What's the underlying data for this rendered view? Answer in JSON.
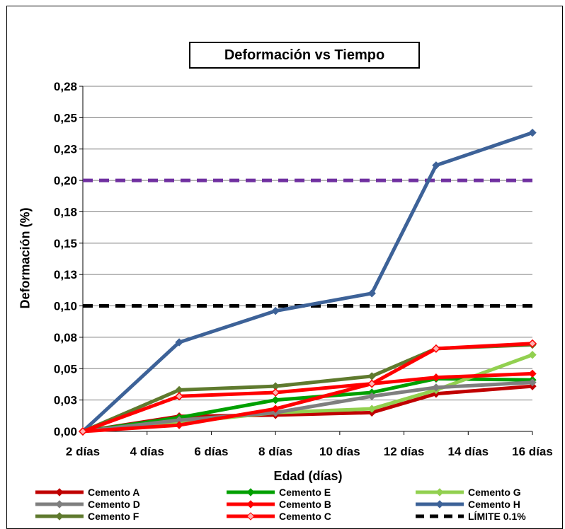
{
  "chart_data": {
    "type": "line",
    "title": "Deformación vs Tiempo",
    "xlabel": "Edad (días)",
    "ylabel": "Deformación (%)",
    "x_ticks": [
      "2 días",
      "4 días",
      "6 días",
      "8 días",
      "10 días",
      "12 días",
      "14 días",
      "16 días"
    ],
    "x_range": [
      2,
      16
    ],
    "y_range": [
      0,
      0.275
    ],
    "y_ticks": [
      {
        "value": 0.0,
        "label": "0,00"
      },
      {
        "value": 0.025,
        "label": "0,03"
      },
      {
        "value": 0.05,
        "label": "0,05"
      },
      {
        "value": 0.075,
        "label": "0,08"
      },
      {
        "value": 0.1,
        "label": "0,10"
      },
      {
        "value": 0.125,
        "label": "0,13"
      },
      {
        "value": 0.15,
        "label": "0,15"
      },
      {
        "value": 0.175,
        "label": "0,18"
      },
      {
        "value": 0.2,
        "label": "0,20"
      },
      {
        "value": 0.225,
        "label": "0,23"
      },
      {
        "value": 0.25,
        "label": "0,25"
      },
      {
        "value": 0.275,
        "label": "0,28"
      }
    ],
    "grid": true,
    "legend_position": "bottom",
    "series": [
      {
        "name": "Cemento A",
        "color": "#c00000",
        "marker": "diamond",
        "dash": false,
        "x": [
          2,
          5,
          8,
          11,
          13,
          16
        ],
        "y": [
          0.0,
          0.012,
          0.013,
          0.015,
          0.03,
          0.036
        ]
      },
      {
        "name": "Cemento E",
        "color": "#00a000",
        "marker": "diamond",
        "dash": false,
        "x": [
          2,
          5,
          8,
          11,
          13,
          16
        ],
        "y": [
          0.0,
          0.011,
          0.025,
          0.031,
          0.042,
          0.041
        ]
      },
      {
        "name": "Cemento G",
        "color": "#92d050",
        "marker": "diamond",
        "dash": false,
        "x": [
          2,
          5,
          8,
          11,
          13,
          16
        ],
        "y": [
          0.0,
          0.007,
          0.015,
          0.018,
          0.033,
          0.061
        ]
      },
      {
        "name": "Cemento D",
        "color": "#7f7f7f",
        "marker": "diamond",
        "dash": false,
        "x": [
          2,
          5,
          8,
          11,
          13,
          16
        ],
        "y": [
          0.0,
          0.009,
          0.015,
          0.028,
          0.035,
          0.039
        ]
      },
      {
        "name": "Cemento B",
        "color": "#ff0000",
        "marker": "diamond",
        "dash": false,
        "x": [
          2,
          5,
          8,
          11,
          13,
          16
        ],
        "y": [
          0.0,
          0.005,
          0.018,
          0.038,
          0.043,
          0.046
        ]
      },
      {
        "name": "Cemento H",
        "color": "#3d6298",
        "marker": "diamond",
        "dash": false,
        "x": [
          2,
          5,
          8,
          11,
          13,
          16
        ],
        "y": [
          0.0,
          0.071,
          0.096,
          0.11,
          0.212,
          0.238
        ]
      },
      {
        "name": "Cemento F",
        "color": "#5f7a2e",
        "marker": "diamond",
        "dash": false,
        "x": [
          2,
          5,
          8,
          11,
          13,
          16
        ],
        "y": [
          0.0,
          0.033,
          0.036,
          0.044,
          0.066,
          0.069
        ]
      },
      {
        "name": "Cemento C",
        "color": "#ff0000",
        "marker": "diamond-hollow",
        "dash": false,
        "x": [
          2,
          5,
          8,
          11,
          13,
          16
        ],
        "y": [
          0.0,
          0.028,
          0.031,
          0.038,
          0.066,
          0.07
        ]
      },
      {
        "name": "LÍMITE 0.1%",
        "color": "#000000",
        "marker": "none",
        "dash": true,
        "x": [
          2,
          16
        ],
        "y": [
          0.1,
          0.1
        ]
      },
      {
        "name": "",
        "color": "#7030a0",
        "marker": "none",
        "dash": true,
        "x": [
          2,
          16
        ],
        "y": [
          0.2,
          0.2
        ]
      }
    ]
  }
}
